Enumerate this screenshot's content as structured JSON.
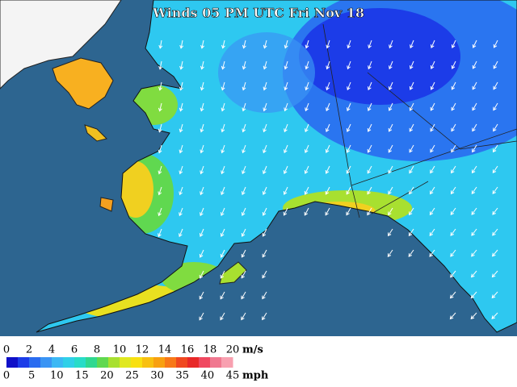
{
  "title": "Winds 05 PM UTC Fri Nov 18",
  "legend": {
    "ms_unit": "m/s",
    "ms_labels": [
      0,
      2,
      4,
      6,
      8,
      10,
      12,
      14,
      16,
      18,
      20
    ],
    "mph_unit": "mph",
    "mph_labels": [
      0,
      5,
      10,
      15,
      20,
      25,
      30,
      35,
      40,
      45
    ],
    "colors": [
      "#1010c8",
      "#1c3ce8",
      "#2a6cf0",
      "#3a94f4",
      "#3cb8f4",
      "#30d0e8",
      "#28dcc8",
      "#30d890",
      "#60d850",
      "#a8e030",
      "#e0e820",
      "#f8e010",
      "#f8c010",
      "#f8a010",
      "#f87818",
      "#f04820",
      "#e82828",
      "#f04860",
      "#f07890",
      "#f8a0b0"
    ]
  }
}
